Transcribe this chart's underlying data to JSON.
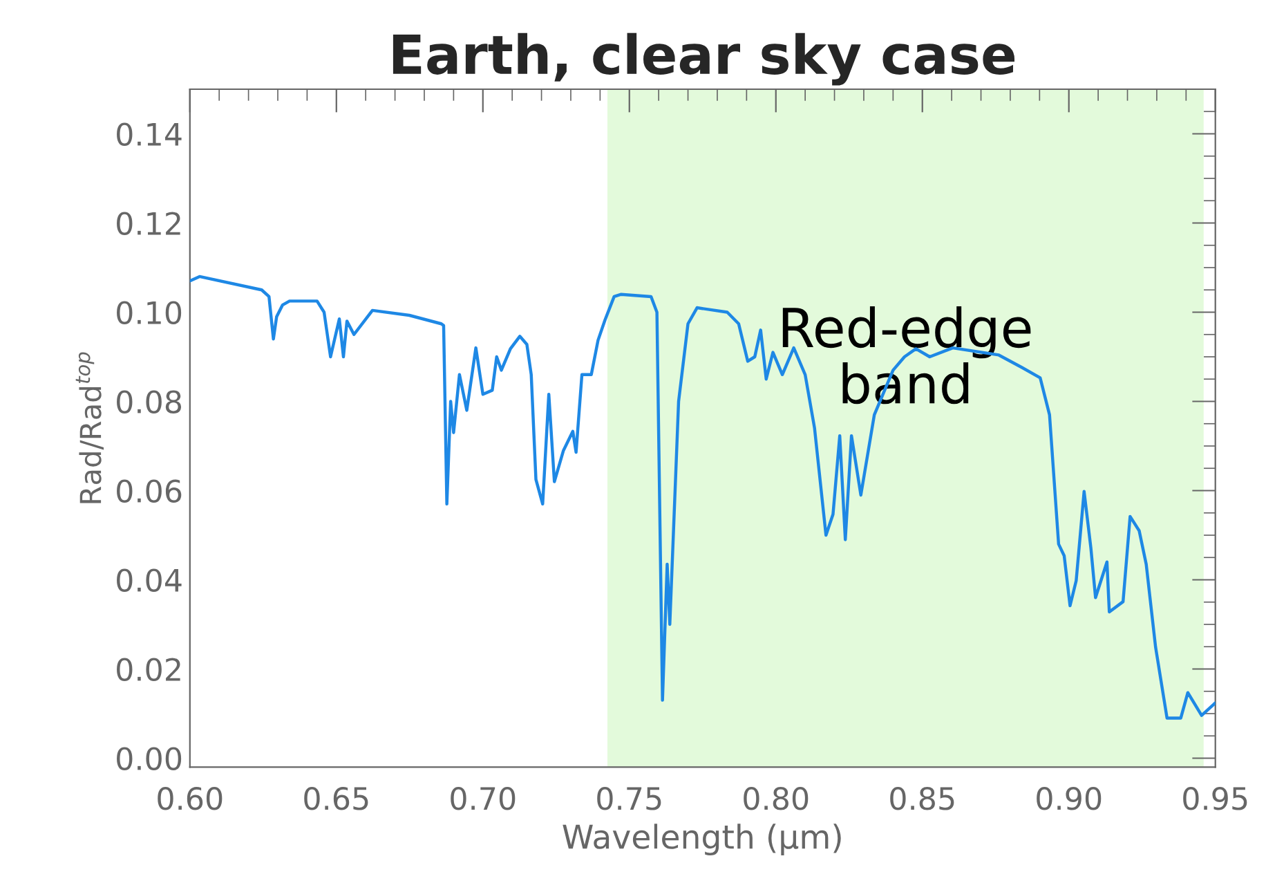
{
  "chart_data": {
    "type": "line",
    "title": "Earth, clear sky case",
    "xlabel": "Wavelength (μm)",
    "ylabel": "Rad/Rad$^{top}$",
    "xlim": [
      0.6,
      0.95
    ],
    "ylim": [
      -0.002,
      0.15
    ],
    "xticks": [
      {
        "value": 0.6,
        "label": "0.60"
      },
      {
        "value": 0.65,
        "label": "0.65"
      },
      {
        "value": 0.7,
        "label": "0.70"
      },
      {
        "value": 0.75,
        "label": "0.75"
      },
      {
        "value": 0.8,
        "label": "0.80"
      },
      {
        "value": 0.85,
        "label": "0.85"
      },
      {
        "value": 0.9,
        "label": "0.90"
      },
      {
        "value": 0.95,
        "label": "0.95"
      }
    ],
    "yticks": [
      {
        "value": 0.0,
        "label": "0.00"
      },
      {
        "value": 0.02,
        "label": "0.02"
      },
      {
        "value": 0.04,
        "label": "0.04"
      },
      {
        "value": 0.06,
        "label": "0.06"
      },
      {
        "value": 0.08,
        "label": "0.08"
      },
      {
        "value": 0.1,
        "label": "0.10"
      },
      {
        "value": 0.12,
        "label": "0.12"
      },
      {
        "value": 0.14,
        "label": "0.14"
      }
    ],
    "grid": false,
    "marker": "none",
    "line_style": "solid",
    "bands": [
      {
        "axis": "x",
        "from": 0.7425,
        "to": 0.946,
        "label": "Red-edge\nband",
        "color": "#e3fadb"
      }
    ],
    "series": [
      {
        "color": "#1e88e5",
        "x": [
          0.6,
          0.6033,
          0.6245,
          0.627,
          0.6285,
          0.6296,
          0.6316,
          0.634,
          0.6434,
          0.6458,
          0.648,
          0.651,
          0.6524,
          0.6536,
          0.656,
          0.6623,
          0.6749,
          0.6858,
          0.6866,
          0.6877,
          0.689,
          0.69,
          0.692,
          0.6945,
          0.6976,
          0.7,
          0.7032,
          0.7047,
          0.7063,
          0.7094,
          0.7126,
          0.715,
          0.7165,
          0.7181,
          0.7204,
          0.7225,
          0.7244,
          0.7275,
          0.7307,
          0.7318,
          0.7338,
          0.737,
          0.7393,
          0.7417,
          0.7448,
          0.7472,
          0.7574,
          0.7594,
          0.7613,
          0.7629,
          0.7638,
          0.7668,
          0.77,
          0.7731,
          0.7834,
          0.7873,
          0.7904,
          0.7928,
          0.7948,
          0.7967,
          0.799,
          0.8022,
          0.8061,
          0.81,
          0.8132,
          0.8171,
          0.8195,
          0.8218,
          0.8237,
          0.8258,
          0.829,
          0.8336,
          0.84,
          0.8439,
          0.8478,
          0.8525,
          0.8604,
          0.8761,
          0.884,
          0.8902,
          0.8934,
          0.8965,
          0.8984,
          0.9004,
          0.9025,
          0.9052,
          0.9075,
          0.9091,
          0.913,
          0.9138,
          0.9185,
          0.9209,
          0.924,
          0.9264,
          0.9296,
          0.9335,
          0.9382,
          0.9406,
          0.9453,
          0.95
        ],
        "values": [
          0.107,
          0.108,
          0.105,
          0.1035,
          0.094,
          0.099,
          0.1016,
          0.1025,
          0.1025,
          0.1,
          0.09,
          0.0985,
          0.09,
          0.098,
          0.095,
          0.1004,
          0.0993,
          0.0974,
          0.097,
          0.057,
          0.08,
          0.073,
          0.086,
          0.078,
          0.092,
          0.0816,
          0.0825,
          0.09,
          0.087,
          0.0918,
          0.0946,
          0.0928,
          0.086,
          0.0625,
          0.057,
          0.0816,
          0.062,
          0.069,
          0.0733,
          0.0686,
          0.086,
          0.086,
          0.0937,
          0.0983,
          0.1035,
          0.104,
          0.1035,
          0.1,
          0.013,
          0.0435,
          0.03,
          0.08,
          0.0974,
          0.101,
          0.1,
          0.0974,
          0.089,
          0.09,
          0.096,
          0.085,
          0.091,
          0.086,
          0.092,
          0.086,
          0.074,
          0.05,
          0.0547,
          0.0723,
          0.049,
          0.0723,
          0.059,
          0.077,
          0.087,
          0.09,
          0.0918,
          0.09,
          0.092,
          0.0904,
          0.0876,
          0.0853,
          0.077,
          0.048,
          0.0454,
          0.0342,
          0.0398,
          0.0598,
          0.0472,
          0.036,
          0.044,
          0.0328,
          0.0351,
          0.0542,
          0.051,
          0.0435,
          0.0249,
          0.009,
          0.009,
          0.0147,
          0.0096,
          0.0124
        ]
      }
    ]
  }
}
